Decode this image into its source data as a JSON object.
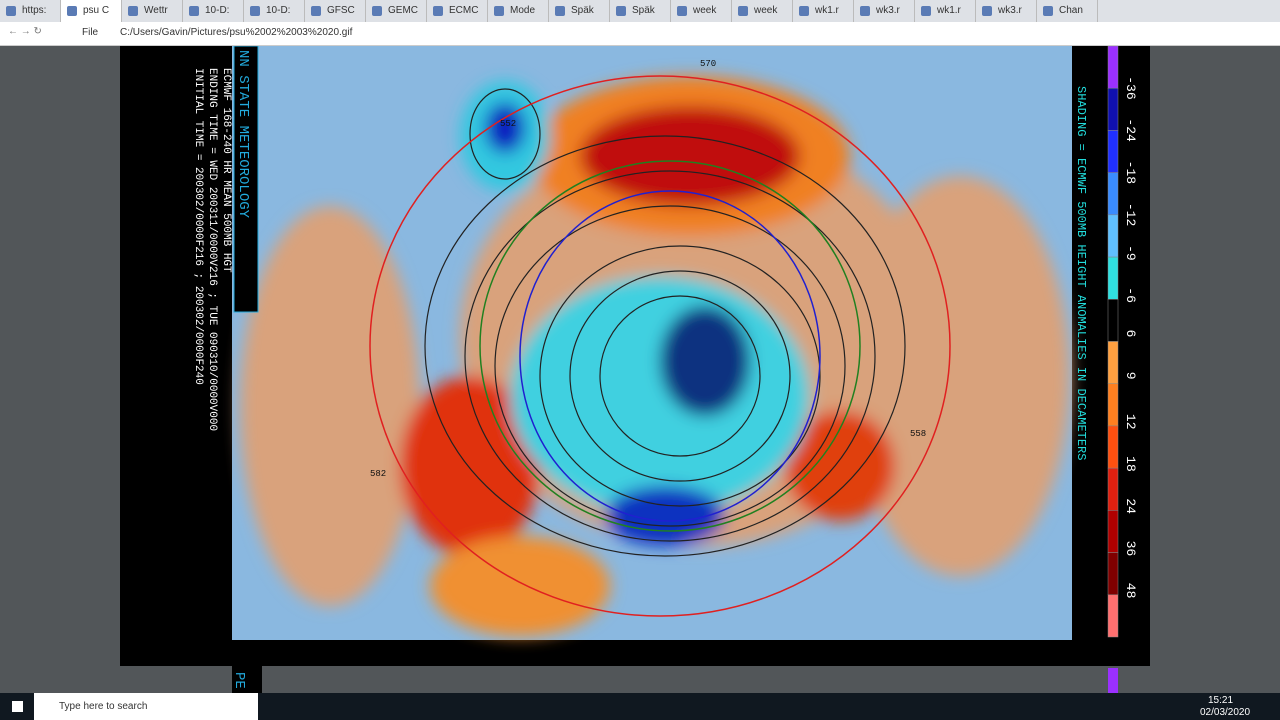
{
  "browser": {
    "tabs": [
      "https:",
      "psu C",
      "Wettr",
      "10-D:",
      "10-D:",
      "GFSC",
      "GEMC",
      "ECMC",
      "Mode",
      "Späk",
      "Späk",
      "week",
      "week",
      "wk1.r",
      "wk3.r",
      "wk1.r",
      "wk3.r",
      "Chan"
    ],
    "address_label": "File",
    "url": "C:/Users/Gavin/Pictures/psu%2002%2003%2020.gif"
  },
  "map": {
    "header_lines": [
      "ECMWF 168-240 HR MEAN 500MB HGT",
      "ENDING TIME = WED 200311/0000V216 ; TUE 090310/0000V000",
      "INITIAL TIME = 200302/0000F216 ; 200302/0000F240"
    ],
    "institution": "NN STATE METEOROLOGY",
    "shading_label": "SHADING = ECMWF 500MB HEIGHT ANOMALIES IN DECAMETERS",
    "colorbar_labels": [
      -36,
      -24,
      -18,
      -12,
      -9,
      -6,
      6,
      9,
      12,
      18,
      24,
      36,
      48
    ],
    "contour_labels": [
      "552",
      "570",
      "582",
      "558"
    ],
    "next_image_label": "PE"
  },
  "taskbar": {
    "search": "Type here to search",
    "time": "15:21",
    "date": "02/03/2020"
  }
}
